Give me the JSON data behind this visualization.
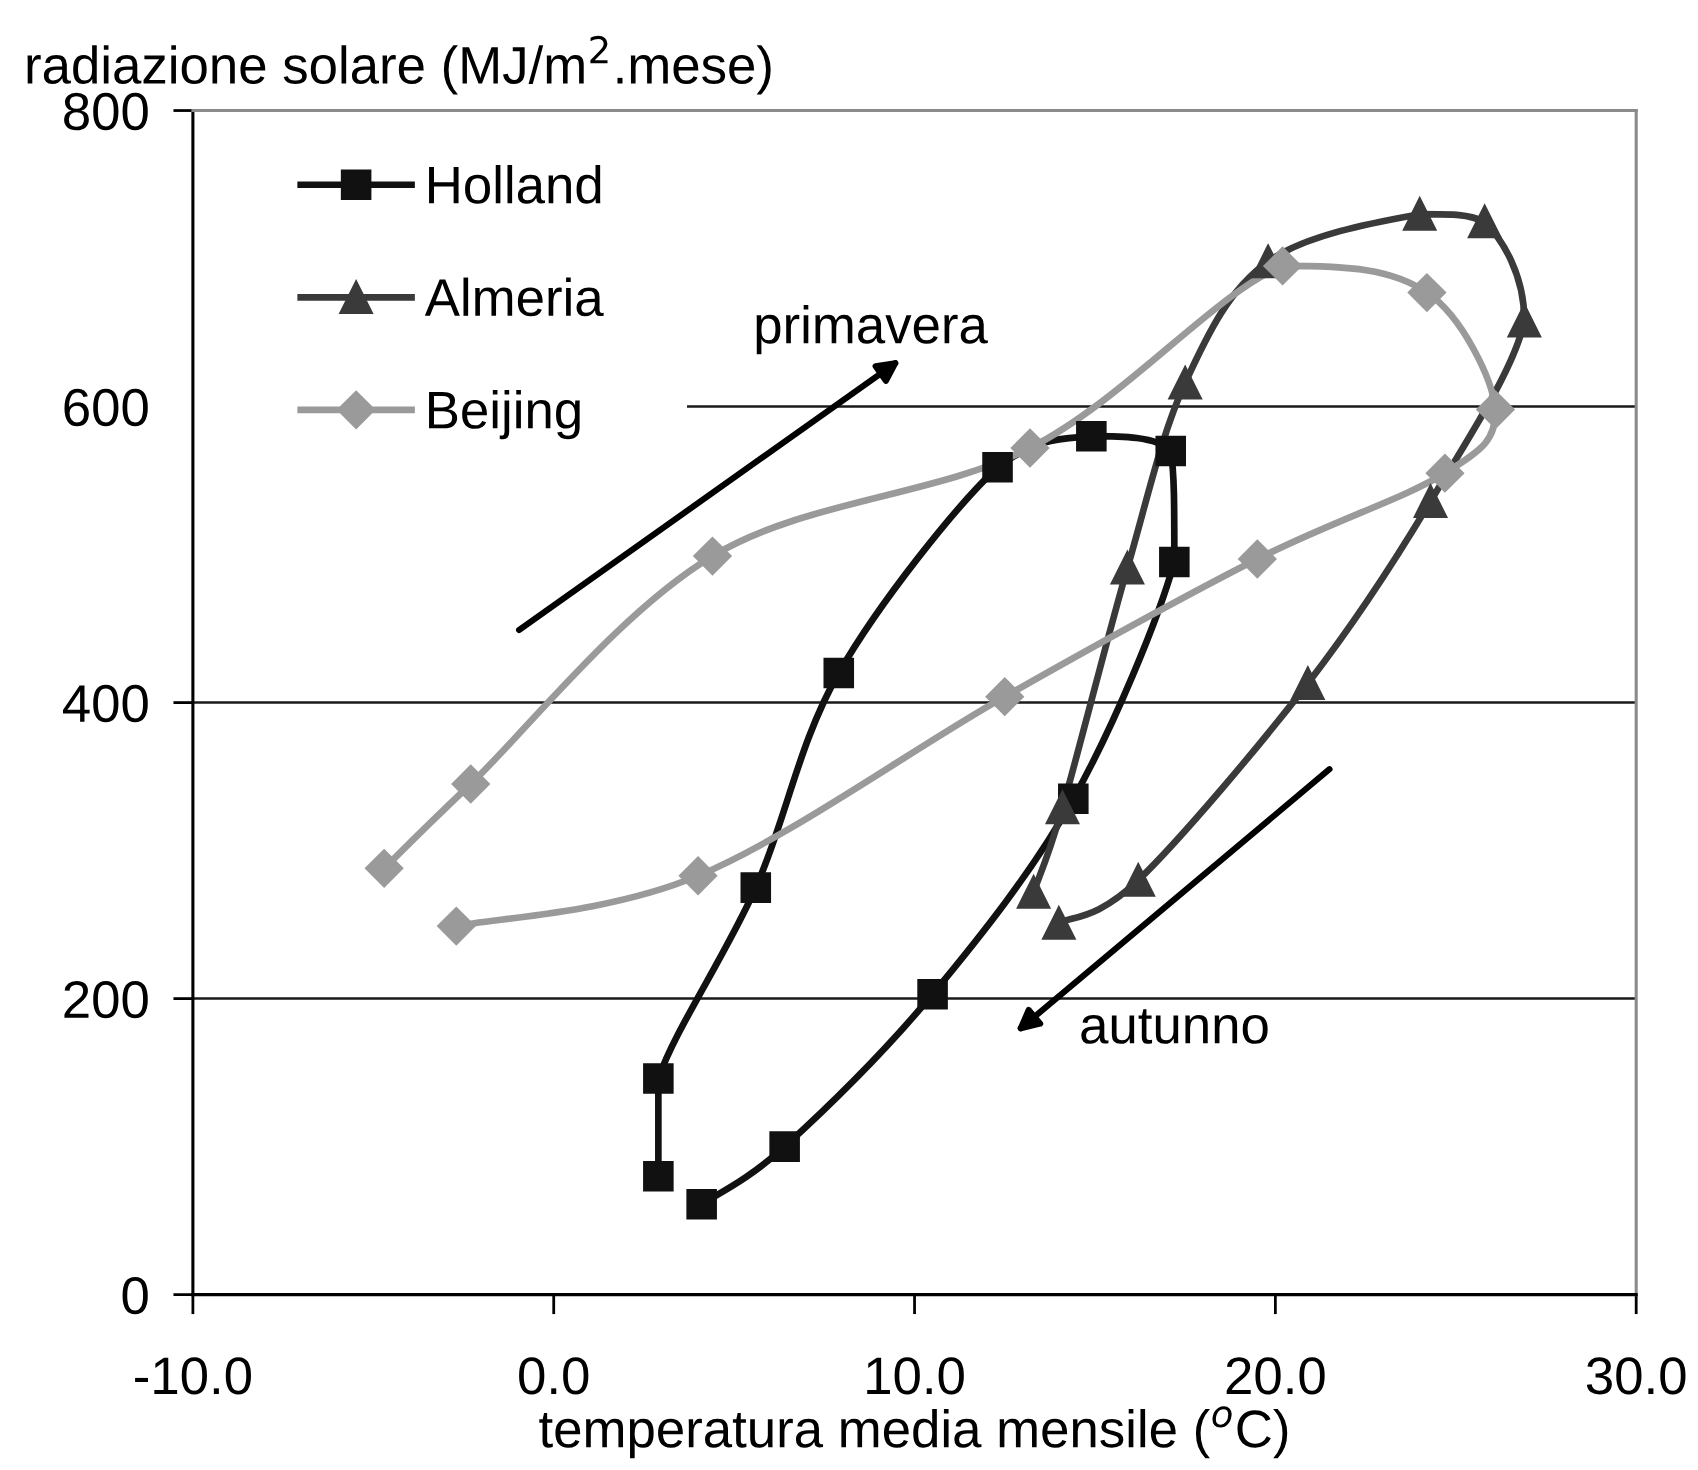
{
  "chart_data": {
    "type": "line",
    "xlabel": "temperatura media mensile ($^{o}$C)",
    "ylabel": "radiazione solare (MJ/m$^{2}$.mese)",
    "xlim": [
      -10,
      30
    ],
    "ylim": [
      0,
      800
    ],
    "xticks": [
      {
        "value": -10,
        "label": "-10.0"
      },
      {
        "value": 0,
        "label": "0.0"
      },
      {
        "value": 10,
        "label": "10.0"
      },
      {
        "value": 20,
        "label": "20.0"
      },
      {
        "value": 30,
        "label": "30.0"
      }
    ],
    "yticks": [
      0,
      200,
      400,
      600,
      800
    ],
    "grid": "y",
    "legend": "top left",
    "line_style": "solid",
    "series": [
      {
        "name": "Holland",
        "color": "#111111",
        "marker": "square",
        "x": [
          2.9,
          2.9,
          5.6,
          7.9,
          12.3,
          14.9,
          17.1,
          17.2,
          14.4,
          10.5,
          6.4,
          4.1
        ],
        "values": [
          80,
          146,
          275,
          420,
          559,
          580,
          570,
          495,
          335,
          203,
          100,
          61
        ]
      },
      {
        "name": "Almeria",
        "color": "#3a3a3a",
        "marker": "triangle",
        "x": [
          13.3,
          14.1,
          15.9,
          17.5,
          19.8,
          24.0,
          25.8,
          26.9,
          24.3,
          20.9,
          16.2,
          14.0
        ],
        "values": [
          272,
          329,
          491,
          616,
          698,
          730,
          725,
          658,
          536,
          413,
          280,
          251
        ]
      },
      {
        "name": "Beijing",
        "color": "#9a9a9a",
        "marker": "diamond",
        "x": [
          -4.7,
          -2.3,
          4.4,
          13.2,
          20.2,
          24.2,
          26.1,
          24.7,
          19.5,
          12.5,
          4.0,
          -2.7
        ],
        "values": [
          288,
          345,
          499,
          572,
          695,
          677,
          598,
          555,
          497,
          404,
          283,
          249
        ]
      }
    ],
    "annotations": [
      "primavera",
      "autunno"
    ]
  }
}
